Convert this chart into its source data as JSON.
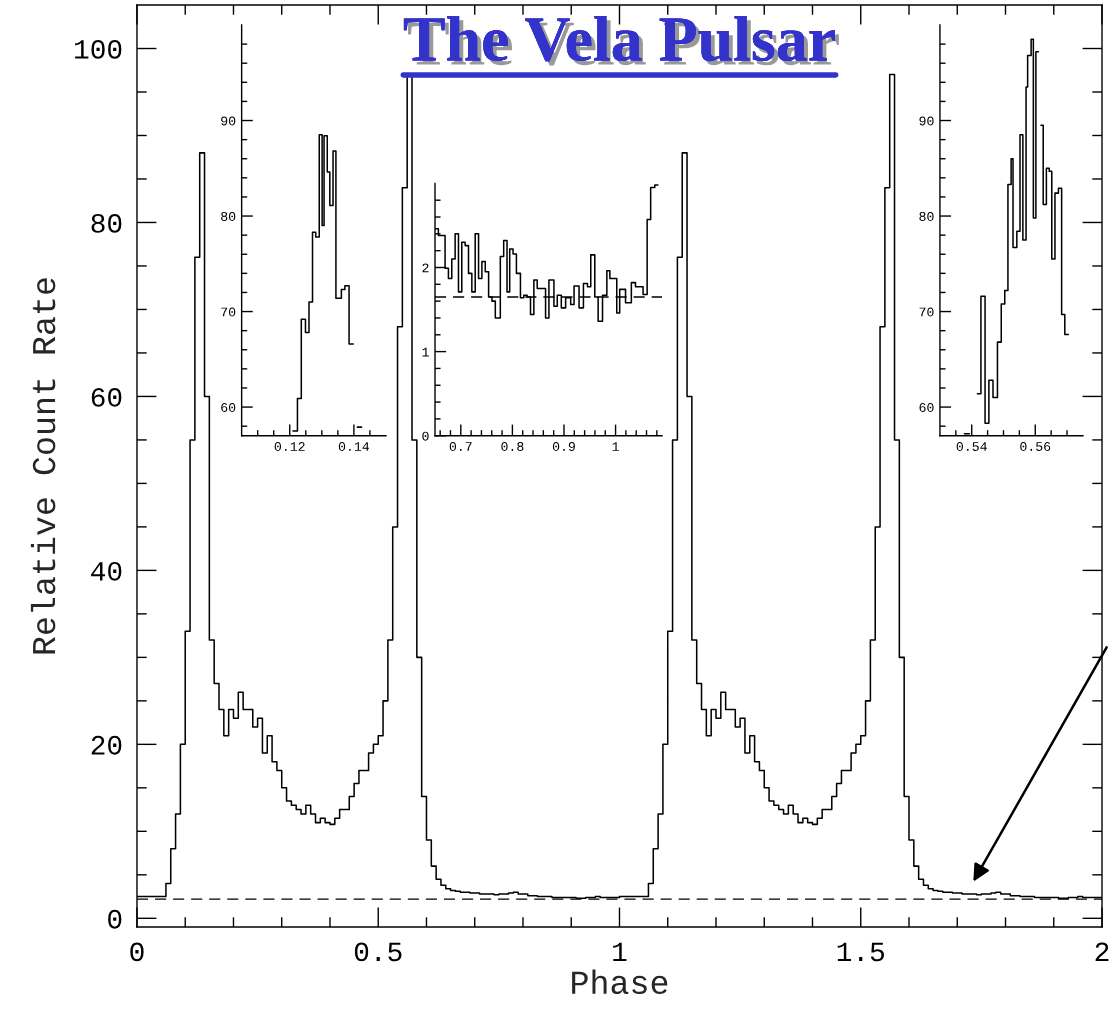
{
  "chart_data": [
    {
      "type": "step",
      "title": "The Vela Pulsar",
      "xlabel": "Phase",
      "ylabel": "Relative Count Rate",
      "x": [
        0,
        0.01,
        0.02,
        0.03,
        0.04,
        0.05,
        0.06,
        0.07,
        0.08,
        0.09,
        0.1,
        0.11,
        0.12,
        0.13,
        0.14,
        0.15,
        0.16,
        0.17,
        0.18,
        0.19,
        0.2,
        0.21,
        0.22,
        0.23,
        0.24,
        0.25,
        0.26,
        0.27,
        0.28,
        0.29,
        0.3,
        0.31,
        0.32,
        0.33,
        0.34,
        0.35,
        0.36,
        0.37,
        0.38,
        0.39,
        0.4,
        0.41,
        0.42,
        0.43,
        0.44,
        0.45,
        0.46,
        0.47,
        0.48,
        0.49,
        0.5,
        0.51,
        0.52,
        0.53,
        0.54,
        0.55,
        0.56,
        0.57,
        0.58,
        0.59,
        0.6,
        0.61,
        0.62,
        0.63,
        0.64,
        0.65,
        0.66,
        0.67,
        0.68,
        0.69,
        0.7,
        0.71,
        0.72,
        0.73,
        0.74,
        0.75,
        0.76,
        0.77,
        0.78,
        0.79,
        0.8,
        0.81,
        0.82,
        0.83,
        0.84,
        0.85,
        0.86,
        0.87,
        0.88,
        0.89,
        0.9,
        0.91,
        0.92,
        0.93,
        0.94,
        0.95,
        0.96,
        0.97,
        0.98,
        0.99,
        1,
        1.01,
        1.02,
        1.03,
        1.04,
        1.05,
        1.06,
        1.07,
        1.08,
        1.09,
        1.1,
        1.11,
        1.12,
        1.13,
        1.14,
        1.15,
        1.16,
        1.17,
        1.18,
        1.19,
        1.2,
        1.21,
        1.22,
        1.23,
        1.24,
        1.25,
        1.26,
        1.27,
        1.28,
        1.29,
        1.3,
        1.31,
        1.32,
        1.33,
        1.34,
        1.35,
        1.36,
        1.37,
        1.38,
        1.39,
        1.4,
        1.41,
        1.42,
        1.43,
        1.44,
        1.45,
        1.46,
        1.47,
        1.48,
        1.49,
        1.5,
        1.51,
        1.52,
        1.53,
        1.54,
        1.55,
        1.56,
        1.57,
        1.58,
        1.59,
        1.6,
        1.61,
        1.62,
        1.63,
        1.64,
        1.65,
        1.66,
        1.67,
        1.68,
        1.69,
        1.7,
        1.71,
        1.72,
        1.73,
        1.74,
        1.75,
        1.76,
        1.77,
        1.78,
        1.79,
        1.8,
        1.81,
        1.82,
        1.83,
        1.84,
        1.85,
        1.86,
        1.87,
        1.88,
        1.89,
        1.9,
        1.91,
        1.92,
        1.93,
        1.94,
        1.95,
        1.96,
        1.97,
        1.98,
        1.99,
        2
      ],
      "series": [
        {
          "color": "#000000",
          "values": [
            2.5,
            2.5,
            2.5,
            2.5,
            2.5,
            2.5,
            4,
            8,
            12,
            20,
            33,
            55,
            76,
            88,
            60,
            32,
            27,
            24,
            21,
            24,
            23,
            26,
            24,
            24,
            22,
            23,
            19,
            21,
            18,
            17,
            15,
            13.5,
            13,
            12.5,
            12,
            13,
            12,
            11,
            11.5,
            11,
            10.8,
            11.5,
            12.5,
            12.5,
            14,
            15.5,
            17,
            17,
            19,
            20,
            21,
            25,
            32,
            45,
            68,
            84,
            97,
            55,
            30,
            14,
            9,
            6,
            4.5,
            3.8,
            3.4,
            3.2,
            3.1,
            3.0,
            3.0,
            2.9,
            2.9,
            2.8,
            2.8,
            2.8,
            2.7,
            2.8,
            2.8,
            2.9,
            3.0,
            2.8,
            2.8,
            2.6,
            2.6,
            2.5,
            2.5,
            2.5,
            2.4,
            2.4,
            2.4,
            2.4,
            2.4,
            2.3,
            2.3,
            2.4,
            2.4,
            2.5,
            2.4,
            2.4,
            2.4,
            2.4,
            2.5,
            2.5,
            2.5,
            2.5,
            2.5,
            2.5,
            4,
            8,
            12,
            20,
            33,
            55,
            76,
            88,
            60,
            32,
            27,
            24,
            21,
            24,
            23,
            26,
            24,
            24,
            22,
            23,
            19,
            21,
            18,
            17,
            15,
            13.5,
            13,
            12.5,
            12,
            13,
            12,
            11,
            11.5,
            11,
            10.8,
            11.5,
            12.5,
            12.5,
            14,
            15.5,
            17,
            17,
            19,
            20,
            21,
            25,
            32,
            45,
            68,
            84,
            97,
            55,
            30,
            14,
            9,
            6,
            4.5,
            3.8,
            3.4,
            3.2,
            3.1,
            3.0,
            3.0,
            2.9,
            2.9,
            2.8,
            2.8,
            2.8,
            2.7,
            2.8,
            2.8,
            2.9,
            3.0,
            2.8,
            2.8,
            2.6,
            2.6,
            2.5,
            2.5,
            2.5,
            2.4,
            2.4,
            2.4,
            2.4,
            2.4,
            2.3,
            2.3,
            2.4,
            2.4,
            2.5,
            2.4,
            2.4,
            2.4,
            2.4,
            2.4
          ]
        }
      ],
      "xlim": [
        0,
        2
      ],
      "ylim": [
        -1,
        105
      ],
      "xticks": [
        0,
        {
          "value": 0.1,
          "label": null
        },
        {
          "value": 0.2,
          "label": null
        },
        {
          "value": 0.3,
          "label": null
        },
        {
          "value": 0.4,
          "label": null
        },
        0.5,
        {
          "value": 0.6,
          "label": null
        },
        {
          "value": 0.7,
          "label": null
        },
        {
          "value": 0.8,
          "label": null
        },
        {
          "value": 0.9,
          "label": null
        },
        1,
        {
          "value": 1.1,
          "label": null
        },
        {
          "value": 1.2,
          "label": null
        },
        {
          "value": 1.3,
          "label": null
        },
        {
          "value": 1.4,
          "label": null
        },
        1.5,
        {
          "value": 1.6,
          "label": null
        },
        {
          "value": 1.7,
          "label": null
        },
        {
          "value": 1.8,
          "label": null
        },
        {
          "value": 1.9,
          "label": null
        },
        2
      ],
      "yticks": [
        0,
        {
          "value": 5,
          "label": null
        },
        {
          "value": 10,
          "label": null
        },
        {
          "value": 15,
          "label": null
        },
        20,
        {
          "value": 25,
          "label": null
        },
        {
          "value": 30,
          "label": null
        },
        {
          "value": 35,
          "label": null
        },
        40,
        {
          "value": 45,
          "label": null
        },
        {
          "value": 50,
          "label": null
        },
        {
          "value": 55,
          "label": null
        },
        60,
        {
          "value": 65,
          "label": null
        },
        {
          "value": 70,
          "label": null
        },
        {
          "value": 75,
          "label": null
        },
        80,
        {
          "value": 85,
          "label": null
        },
        {
          "value": 90,
          "label": null
        },
        {
          "value": 95,
          "label": null
        },
        100
      ],
      "ref_lines": [
        {
          "axis": "y",
          "value": 2.2,
          "line_style": "dashed"
        }
      ]
    },
    {
      "type": "step",
      "x": [
        0.121,
        0.1224,
        0.1236,
        0.1249,
        0.126,
        0.1271,
        0.1281,
        0.1292,
        0.1301,
        0.1307,
        0.1317,
        0.1325,
        0.1335,
        0.1344,
        0.1361,
        0.1372,
        0.1385,
        0.1398,
        0.1411,
        0.1424
      ],
      "series": [
        {
          "color": "#000000",
          "values": [
            57.5,
            60.9,
            69.2,
            67.8,
            71.0,
            78.3,
            77.8,
            88.5,
            79.0,
            88.4,
            84.6,
            81.1,
            86.8,
            71.4,
            72.3,
            72.7,
            66.6,
            null,
            57.9,
            57.9
          ]
        }
      ],
      "xlim": [
        0.105,
        0.15
      ],
      "ylim": [
        57,
        100
      ],
      "xticks": [
        {
          "value": 0.11,
          "label": null
        },
        {
          "value": 0.115,
          "label": null
        },
        0.12,
        {
          "value": 0.125,
          "label": null
        },
        {
          "value": 0.13,
          "label": null
        },
        {
          "value": 0.135,
          "label": null
        },
        0.14,
        {
          "value": 0.145,
          "label": null
        }
      ],
      "yticks": [
        {
          "value": 58,
          "label": null
        },
        60,
        {
          "value": 62,
          "label": null
        },
        {
          "value": 64,
          "label": null
        },
        {
          "value": 66,
          "label": null
        },
        {
          "value": 68,
          "label": null
        },
        70,
        {
          "value": 72,
          "label": null
        },
        {
          "value": 74,
          "label": null
        },
        {
          "value": 76,
          "label": null
        },
        {
          "value": 78,
          "label": null
        },
        80,
        {
          "value": 82,
          "label": null
        },
        {
          "value": 84,
          "label": null
        },
        {
          "value": 86,
          "label": null
        },
        {
          "value": 88,
          "label": null
        },
        90,
        {
          "value": 92,
          "label": null
        },
        {
          "value": 94,
          "label": null
        },
        {
          "value": 96,
          "label": null
        },
        {
          "value": 98,
          "label": null
        }
      ]
    },
    {
      "type": "step",
      "x": [
        0.65,
        0.6565,
        0.6695,
        0.676,
        0.6825,
        0.689,
        0.6955,
        0.7019,
        0.7084,
        0.7149,
        0.7214,
        0.7279,
        0.7344,
        0.7409,
        0.7474,
        0.7539,
        0.7604,
        0.7669,
        0.7766,
        0.7831,
        0.7896,
        0.7948,
        0.8013,
        0.8078,
        0.8156,
        0.8221,
        0.8286,
        0.8351,
        0.8416,
        0.8481,
        0.8643,
        0.8708,
        0.8805,
        0.887,
        0.8948,
        0.9032,
        0.913,
        0.9195,
        0.9292,
        0.9377,
        0.9455,
        0.9519,
        0.9597,
        0.9662,
        0.9747,
        0.9831,
        0.9889,
        1.0023,
        1.008,
        1.0193,
        1.0306,
        1.0386,
        1.0533,
        1.0612,
        1.068,
        1.076,
        1.082
      ],
      "series": [
        {
          "color": "#000000",
          "values": [
            2.46,
            2.38,
            1.99,
            1.87,
            2.1,
            2.4,
            1.71,
            2.3,
            2.26,
            1.93,
            1.71,
            2.4,
            1.87,
            2.07,
            1.95,
            1.65,
            1.6,
            1.4,
            2.13,
            2.32,
            1.71,
            2.22,
            2.16,
            1.93,
            1.64,
            1.67,
            1.65,
            1.44,
            1.85,
            1.75,
            1.4,
            1.85,
            1.54,
            1.67,
            1.52,
            1.64,
            1.56,
            1.78,
            1.52,
            1.81,
            1.77,
            2.15,
            1.65,
            1.36,
            1.67,
            1.96,
            1.87,
            1.46,
            1.74,
            1.58,
            1.82,
            1.77,
            1.68,
            2.57,
            2.95,
            2.98,
            2.98
          ]
        }
      ],
      "xlim": [
        0.65,
        1.09
      ],
      "ylim": [
        0,
        3
      ],
      "xticks": [
        {
          "value": 0.66,
          "label": null
        },
        {
          "value": 0.68,
          "label": null
        },
        0.7,
        {
          "value": 0.72,
          "label": null
        },
        {
          "value": 0.74,
          "label": null
        },
        {
          "value": 0.76,
          "label": null
        },
        {
          "value": 0.78,
          "label": null
        },
        0.8,
        {
          "value": 0.82,
          "label": null
        },
        {
          "value": 0.84,
          "label": null
        },
        {
          "value": 0.86,
          "label": null
        },
        {
          "value": 0.88,
          "label": null
        },
        0.9,
        {
          "value": 0.92,
          "label": null
        },
        {
          "value": 0.94,
          "label": null
        },
        {
          "value": 0.96,
          "label": null
        },
        {
          "value": 0.98,
          "label": null
        },
        1,
        {
          "value": 1.02,
          "label": null
        },
        {
          "value": 1.04,
          "label": null
        },
        {
          "value": 1.06,
          "label": null
        },
        {
          "value": 1.08,
          "label": null
        }
      ],
      "yticks": [
        0,
        {
          "value": 0.2,
          "label": null
        },
        {
          "value": 0.4,
          "label": null
        },
        {
          "value": 0.6,
          "label": null
        },
        {
          "value": 0.8,
          "label": null
        },
        1,
        {
          "value": 1.2,
          "label": null
        },
        {
          "value": 1.4,
          "label": null
        },
        {
          "value": 1.6,
          "label": null
        },
        {
          "value": 1.8,
          "label": null
        },
        2,
        {
          "value": 2.2,
          "label": null
        },
        {
          "value": 2.4,
          "label": null
        },
        {
          "value": 2.6,
          "label": null
        },
        {
          "value": 2.8,
          "label": null
        }
      ],
      "ref_lines": [
        {
          "axis": "y",
          "value": 1.65,
          "line_style": "dashed"
        }
      ]
    },
    {
      "type": "step",
      "x": [
        0.5377,
        0.5393,
        0.5418,
        0.5429,
        0.5442,
        0.5454,
        0.5467,
        0.5481,
        0.5493,
        0.5504,
        0.5514,
        0.5524,
        0.553,
        0.5542,
        0.5552,
        0.5561,
        0.5571,
        0.5576,
        0.5587,
        0.5594,
        0.5602,
        0.561,
        0.5618,
        0.5625,
        0.5635,
        0.5644,
        0.5652,
        0.5662,
        0.5673,
        0.5683,
        0.5693,
        0.5704
      ],
      "series": [
        {
          "color": "#000000",
          "values": [
            57.2,
            null,
            61.4,
            71.6,
            58.3,
            62.8,
            61.0,
            66.8,
            70.8,
            72.2,
            83.3,
            86.0,
            76.7,
            78.4,
            88.5,
            77.5,
            93.5,
            96.8,
            98.5,
            79.8,
            97.2,
            null,
            89.5,
            81.2,
            85.0,
            84.7,
            75.5,
            82.4,
            82.9,
            69.7,
            67.6,
            67.6
          ]
        }
      ],
      "xlim": [
        0.53,
        0.575
      ],
      "ylim": [
        57,
        100
      ],
      "xticks": [
        {
          "value": 0.535,
          "label": null
        },
        0.54,
        {
          "value": 0.545,
          "label": null
        },
        {
          "value": 0.55,
          "label": null
        },
        {
          "value": 0.555,
          "label": null
        },
        0.56,
        {
          "value": 0.565,
          "label": null
        },
        {
          "value": 0.57,
          "label": null
        }
      ],
      "yticks": [
        {
          "value": 58,
          "label": null
        },
        60,
        {
          "value": 62,
          "label": null
        },
        {
          "value": 64,
          "label": null
        },
        {
          "value": 66,
          "label": null
        },
        {
          "value": 68,
          "label": null
        },
        70,
        {
          "value": 72,
          "label": null
        },
        {
          "value": 74,
          "label": null
        },
        {
          "value": 76,
          "label": null
        },
        {
          "value": 78,
          "label": null
        },
        80,
        {
          "value": 82,
          "label": null
        },
        {
          "value": 84,
          "label": null
        },
        {
          "value": 86,
          "label": null
        },
        {
          "value": 88,
          "label": null
        },
        90,
        {
          "value": 92,
          "label": null
        },
        {
          "value": 94,
          "label": null
        },
        {
          "value": 96,
          "label": null
        },
        {
          "value": 98,
          "label": null
        }
      ]
    }
  ]
}
